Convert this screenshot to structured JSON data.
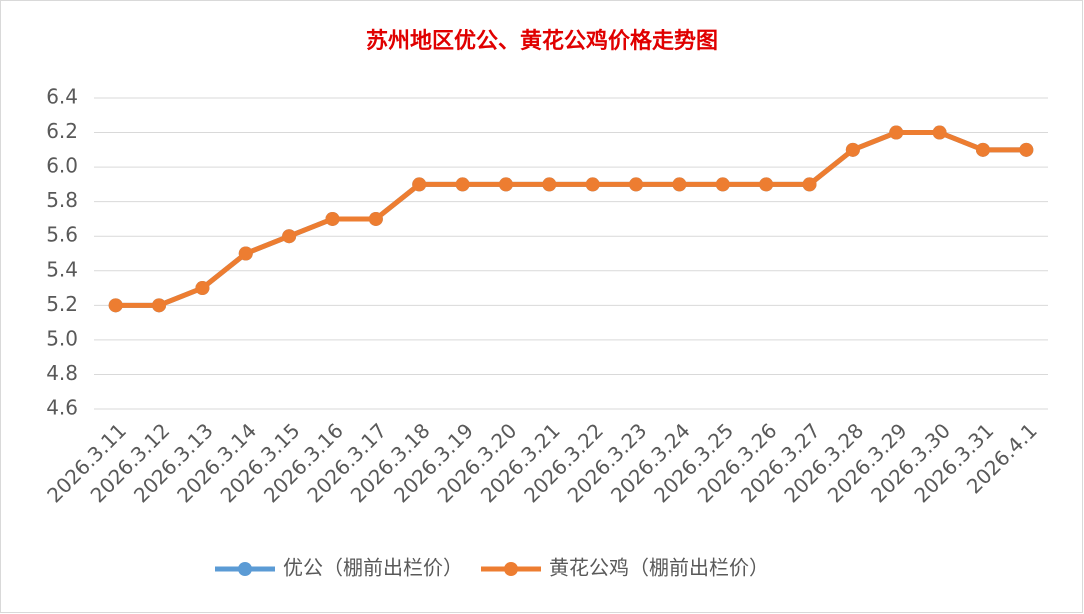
{
  "chart_data": {
    "type": "line",
    "title": "苏州地区优公、黄花公鸡价格走势图",
    "categories": [
      "2026.3.11",
      "2026.3.12",
      "2026.3.13",
      "2026.3.14",
      "2026.3.15",
      "2026.3.16",
      "2026.3.17",
      "2026.3.18",
      "2026.3.19",
      "2026.3.20",
      "2026.3.21",
      "2026.3.22",
      "2026.3.23",
      "2026.3.24",
      "2026.3.25",
      "2026.3.26",
      "2026.3.27",
      "2026.3.28",
      "2026.3.29",
      "2026.3.30",
      "2026.3.31",
      "2026.4.1"
    ],
    "series": [
      {
        "name": "优公（棚前出栏价）",
        "color": "#5b9bd5",
        "values": [
          5.2,
          5.2,
          5.3,
          5.5,
          5.6,
          5.7,
          5.7,
          5.9,
          5.9,
          5.9,
          5.9,
          5.9,
          5.9,
          5.9,
          5.9,
          5.9,
          5.9,
          6.1,
          6.2,
          6.2,
          6.1,
          6.1
        ]
      },
      {
        "name": "黄花公鸡（棚前出栏价）",
        "color": "#ed7d31",
        "values": [
          5.2,
          5.2,
          5.3,
          5.5,
          5.6,
          5.7,
          5.7,
          5.9,
          5.9,
          5.9,
          5.9,
          5.9,
          5.9,
          5.9,
          5.9,
          5.9,
          5.9,
          6.1,
          6.2,
          6.2,
          6.1,
          6.1
        ]
      }
    ],
    "ylim": [
      4.6,
      6.4
    ],
    "yticks": [
      4.6,
      4.8,
      {
        "value": 5,
        "label": "5.0"
      },
      5.2,
      5.4,
      5.6,
      5.8,
      {
        "value": 6,
        "label": "6.0"
      },
      6.2,
      6.4
    ],
    "grid": true,
    "legend": "bottom"
  }
}
